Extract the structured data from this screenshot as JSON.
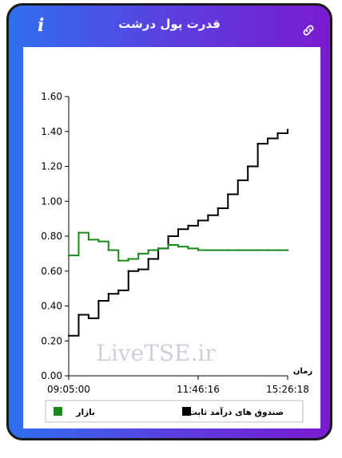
{
  "header": {
    "title": "قدرت پول درشت",
    "info_icon": "info-icon",
    "link_icon": "link-icon",
    "info_glyph": "i"
  },
  "colors": {
    "gradient_left": "#2f6ff0",
    "gradient_right": "#7a1ad0",
    "market_series": "#1a8a1a",
    "fund_series": "#000000"
  },
  "chart_data": {
    "type": "line",
    "xlabel": "زمان",
    "ylabel": "",
    "ylim": [
      0,
      1.6
    ],
    "yticks": [
      "0.00",
      "0.20",
      "0.40",
      "0.60",
      "0.80",
      "1.00",
      "1.20",
      "1.40",
      "1.60"
    ],
    "xticks": [
      "09:05:00",
      "11:46:16",
      "15:26:18"
    ],
    "watermark": "LiveTSE.ir",
    "grid": false,
    "legend_position": "bottom",
    "x": [
      "09:05:00",
      "09:10",
      "09:15",
      "09:20",
      "09:30",
      "09:45",
      "10:00",
      "10:15",
      "10:30",
      "10:45",
      "11:00",
      "11:15",
      "11:30",
      "11:46:16",
      "12:00",
      "12:15",
      "12:30",
      "13:00",
      "13:30",
      "14:00",
      "14:30",
      "15:00",
      "15:26:18"
    ],
    "series": [
      {
        "name": "صندوق های درآمد ثابت",
        "color": "#000000",
        "values": [
          0.23,
          0.35,
          0.33,
          0.43,
          0.47,
          0.49,
          0.6,
          0.61,
          0.67,
          0.73,
          0.8,
          0.84,
          0.86,
          0.89,
          0.92,
          0.96,
          1.04,
          1.12,
          1.2,
          1.33,
          1.36,
          1.39,
          1.41
        ]
      },
      {
        "name": "بازار",
        "color": "#1a8a1a",
        "values": [
          0.69,
          0.82,
          0.78,
          0.77,
          0.72,
          0.66,
          0.67,
          0.7,
          0.72,
          0.73,
          0.75,
          0.74,
          0.73,
          0.72,
          0.72,
          0.72,
          0.72,
          0.72,
          0.72,
          0.72,
          0.72,
          0.72,
          0.72
        ]
      }
    ]
  }
}
